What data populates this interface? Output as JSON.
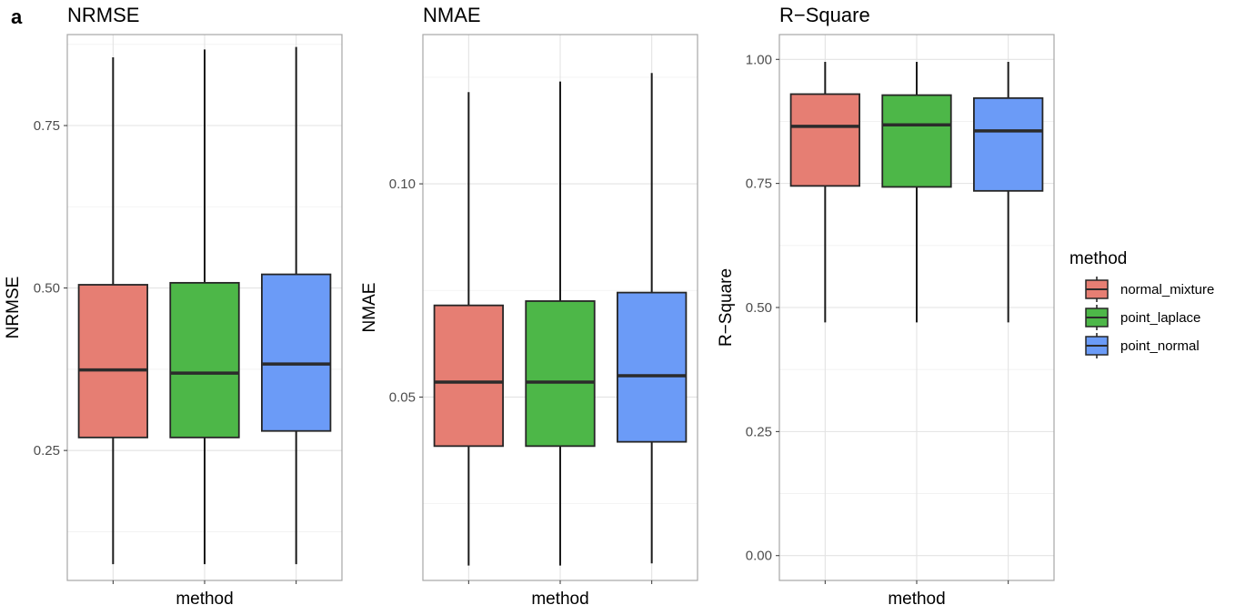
{
  "figure": {
    "panel_tag": "a"
  },
  "legend": {
    "title": "method",
    "placement": "right",
    "entries": [
      {
        "label": "normal_mixture",
        "color": "#E67E73"
      },
      {
        "label": "point_laplace",
        "color": "#4DB748"
      },
      {
        "label": "point_normal",
        "color": "#6B9BF7"
      }
    ]
  },
  "chart_data": [
    {
      "type": "boxplot",
      "title": "NRMSE",
      "xlabel": "method",
      "ylabel": "NRMSE",
      "ylim": [
        0.05,
        0.89
      ],
      "yticks": [
        0.25,
        0.5,
        0.75
      ],
      "ytick_labels": [
        "0.25",
        "0.50",
        "0.75"
      ],
      "grid": true,
      "series": [
        {
          "name": "normal_mixture",
          "min": 0.075,
          "q1": 0.27,
          "median": 0.374,
          "q3": 0.505,
          "max": 0.855
        },
        {
          "name": "point_laplace",
          "min": 0.075,
          "q1": 0.27,
          "median": 0.369,
          "q3": 0.508,
          "max": 0.867
        },
        {
          "name": "point_normal",
          "min": 0.075,
          "q1": 0.28,
          "median": 0.383,
          "q3": 0.521,
          "max": 0.871
        }
      ]
    },
    {
      "type": "boxplot",
      "title": "NMAE",
      "xlabel": "method",
      "ylabel": "NMAE",
      "ylim": [
        0.007,
        0.135
      ],
      "yticks": [
        0.05,
        0.1
      ],
      "ytick_labels": [
        "0.05",
        "0.10"
      ],
      "grid": true,
      "series": [
        {
          "name": "normal_mixture",
          "min": 0.0105,
          "q1": 0.0385,
          "median": 0.0535,
          "q3": 0.0715,
          "max": 0.1215
        },
        {
          "name": "point_laplace",
          "min": 0.0105,
          "q1": 0.0385,
          "median": 0.0535,
          "q3": 0.0725,
          "max": 0.124
        },
        {
          "name": "point_normal",
          "min": 0.011,
          "q1": 0.0395,
          "median": 0.055,
          "q3": 0.0745,
          "max": 0.126
        }
      ]
    },
    {
      "type": "boxplot",
      "title": "R−Square",
      "xlabel": "method",
      "ylabel": "R−Square",
      "ylim": [
        -0.05,
        1.05
      ],
      "yticks": [
        0.0,
        0.25,
        0.5,
        0.75,
        1.0
      ],
      "ytick_labels": [
        "0.00",
        "0.25",
        "0.50",
        "0.75",
        "1.00"
      ],
      "grid": true,
      "series": [
        {
          "name": "normal_mixture",
          "min": 0.47,
          "q1": 0.745,
          "median": 0.865,
          "q3": 0.93,
          "max": 0.995
        },
        {
          "name": "point_laplace",
          "min": 0.47,
          "q1": 0.743,
          "median": 0.868,
          "q3": 0.928,
          "max": 0.995
        },
        {
          "name": "point_normal",
          "min": 0.47,
          "q1": 0.735,
          "median": 0.856,
          "q3": 0.922,
          "max": 0.995
        }
      ]
    }
  ]
}
